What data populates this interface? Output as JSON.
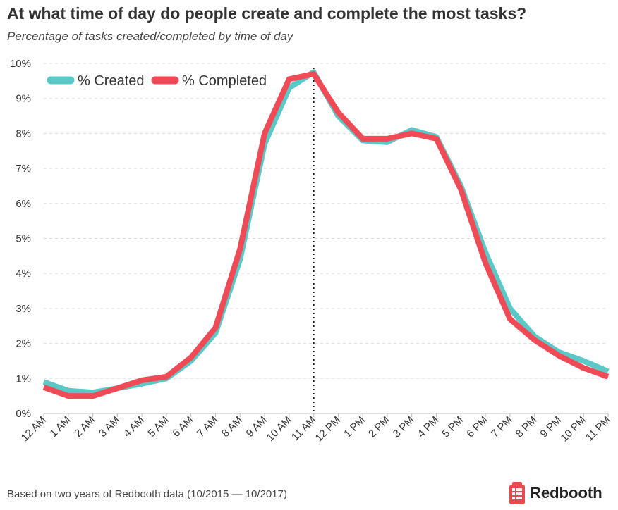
{
  "header": {
    "title": "At what time of day do people create and complete the most tasks?",
    "subtitle": "Percentage of tasks created/completed by time of day"
  },
  "footer": {
    "note": "Based on two years of Redbooth data (10/2015 — 10/2017)",
    "brand": "Redbooth",
    "brand_icon": "building-icon"
  },
  "colors": {
    "created": "#5bc8c8",
    "completed": "#ef4a55",
    "grid": "#dddddd",
    "marker": "#111111",
    "brand": "#e84a4f"
  },
  "chart_data": {
    "type": "line",
    "title": "At what time of day do people create and complete the most tasks?",
    "subtitle": "Percentage of tasks created/completed by time of day",
    "x": [
      "12 AM",
      "1 AM",
      "2 AM",
      "3 AM",
      "4 AM",
      "5 AM",
      "6 AM",
      "7 AM",
      "8 AM",
      "9 AM",
      "10 AM",
      "11 AM",
      "12 PM",
      "1 PM",
      "2 PM",
      "3 PM",
      "4 PM",
      "5 PM",
      "6 PM",
      "7 PM",
      "8 PM",
      "9 PM",
      "10 PM",
      "11 PM"
    ],
    "y_ticks": [
      "0%",
      "1%",
      "2%",
      "3%",
      "4%",
      "5%",
      "6%",
      "7%",
      "8%",
      "9%",
      "10%"
    ],
    "ylim": [
      0,
      10
    ],
    "y_unit": "%",
    "grid": true,
    "legend": "top-left",
    "reference_line_at": "11 AM",
    "series": [
      {
        "name": "% Created",
        "values": [
          0.9,
          0.65,
          0.6,
          0.72,
          0.85,
          1.0,
          1.5,
          2.3,
          4.4,
          7.7,
          9.3,
          9.75,
          8.5,
          7.8,
          7.75,
          8.1,
          7.9,
          6.5,
          4.6,
          3.0,
          2.2,
          1.75,
          1.5,
          1.2
        ]
      },
      {
        "name": "% Completed",
        "values": [
          0.75,
          0.5,
          0.5,
          0.72,
          0.95,
          1.05,
          1.6,
          2.45,
          4.7,
          8.0,
          9.55,
          9.7,
          8.6,
          7.85,
          7.85,
          8.0,
          7.85,
          6.4,
          4.3,
          2.7,
          2.1,
          1.65,
          1.3,
          1.05
        ]
      }
    ]
  }
}
